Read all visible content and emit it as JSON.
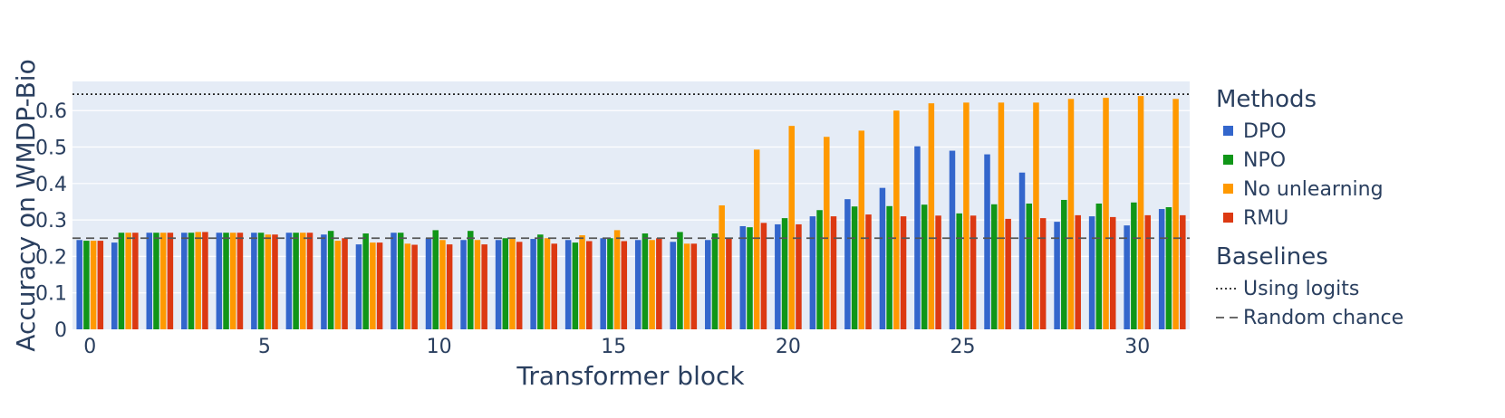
{
  "chart_data": {
    "type": "bar",
    "xlabel": "Transformer block",
    "ylabel": "Accuracy on WMDP-Bio",
    "ylim": [
      0,
      0.68
    ],
    "xlim": [
      -0.5,
      31.5
    ],
    "x_ticks": [
      0,
      5,
      10,
      15,
      20,
      25,
      30
    ],
    "y_ticks": [
      0,
      0.1,
      0.2,
      0.3,
      0.4,
      0.5,
      0.6
    ],
    "y_tick_labels": [
      "0",
      "0.1",
      "0.2",
      "0.3",
      "0.4",
      "0.5",
      "0.6"
    ],
    "grid": true,
    "legend_placement": "right",
    "categories": [
      0,
      1,
      2,
      3,
      4,
      5,
      6,
      7,
      8,
      9,
      10,
      11,
      12,
      13,
      14,
      15,
      16,
      17,
      18,
      19,
      20,
      21,
      22,
      23,
      24,
      25,
      26,
      27,
      28,
      29,
      30,
      31
    ],
    "legend_groups": [
      {
        "title": "Methods",
        "entries": [
          "DPO",
          "NPO",
          "No unlearning",
          "RMU"
        ]
      },
      {
        "title": "Baselines",
        "entries": [
          "Using logits",
          "Random chance"
        ]
      }
    ],
    "series": [
      {
        "name": "DPO",
        "color": "#3366cc",
        "values": [
          0.245,
          0.238,
          0.265,
          0.265,
          0.265,
          0.265,
          0.265,
          0.26,
          0.233,
          0.265,
          0.25,
          0.245,
          0.245,
          0.248,
          0.245,
          0.25,
          0.245,
          0.24,
          0.245,
          0.283,
          0.288,
          0.31,
          0.357,
          0.388,
          0.502,
          0.49,
          0.48,
          0.43,
          0.295,
          0.31,
          0.285,
          0.33
        ]
      },
      {
        "name": "NPO",
        "color": "#109618",
        "values": [
          0.243,
          0.265,
          0.265,
          0.265,
          0.265,
          0.265,
          0.265,
          0.27,
          0.263,
          0.265,
          0.272,
          0.27,
          0.25,
          0.26,
          0.238,
          0.25,
          0.263,
          0.267,
          0.263,
          0.28,
          0.305,
          0.327,
          0.337,
          0.338,
          0.342,
          0.318,
          0.343,
          0.345,
          0.355,
          0.345,
          0.348,
          0.335
        ]
      },
      {
        "name": "No unlearning",
        "color": "#ff9900",
        "values": [
          0.243,
          0.265,
          0.265,
          0.267,
          0.265,
          0.26,
          0.265,
          0.243,
          0.238,
          0.235,
          0.245,
          0.245,
          0.248,
          0.25,
          0.258,
          0.272,
          0.245,
          0.235,
          0.34,
          0.493,
          0.558,
          0.528,
          0.545,
          0.6,
          0.62,
          0.622,
          0.622,
          0.622,
          0.632,
          0.635,
          0.64,
          0.632
        ]
      },
      {
        "name": "RMU",
        "color": "#dc3912",
        "values": [
          0.243,
          0.265,
          0.265,
          0.267,
          0.265,
          0.26,
          0.265,
          0.25,
          0.238,
          0.232,
          0.233,
          0.233,
          0.24,
          0.235,
          0.242,
          0.242,
          0.25,
          0.235,
          0.25,
          0.292,
          0.288,
          0.31,
          0.315,
          0.31,
          0.312,
          0.312,
          0.303,
          0.305,
          0.313,
          0.308,
          0.313,
          0.313
        ]
      }
    ],
    "baselines": [
      {
        "name": "Using logits",
        "value": 0.645,
        "dash": "dot",
        "color": "#222222"
      },
      {
        "name": "Random chance",
        "value": 0.25,
        "dash": "dash",
        "color": "#555555"
      }
    ]
  }
}
